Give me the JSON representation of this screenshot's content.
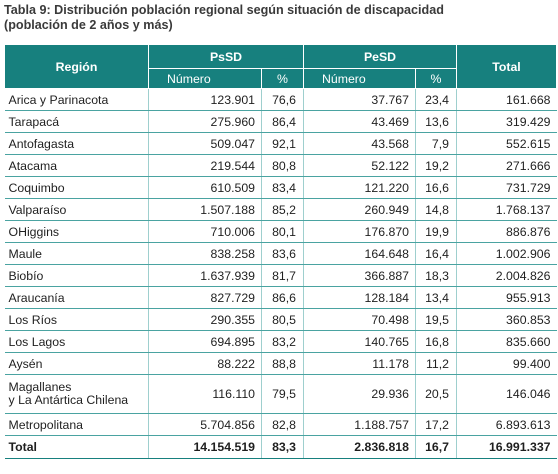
{
  "title_line1": "Tabla 9: Distribución población regional según situación de discapacidad",
  "title_line2": "(población de 2 años y más)",
  "headers": {
    "region": "Región",
    "psd": "PsSD",
    "pesd": "PeSD",
    "total": "Total",
    "numero": "Número",
    "pct": "%"
  },
  "rows": [
    {
      "region": "Arica y Parinacota",
      "psd_n": "123.901",
      "psd_p": "76,6",
      "pesd_n": "37.767",
      "pesd_p": "23,4",
      "total": "161.668"
    },
    {
      "region": "Tarapacá",
      "psd_n": "275.960",
      "psd_p": "86,4",
      "pesd_n": "43.469",
      "pesd_p": "13,6",
      "total": "319.429"
    },
    {
      "region": "Antofagasta",
      "psd_n": "509.047",
      "psd_p": "92,1",
      "pesd_n": "43.568",
      "pesd_p": "7,9",
      "total": "552.615"
    },
    {
      "region": "Atacama",
      "psd_n": "219.544",
      "psd_p": "80,8",
      "pesd_n": "52.122",
      "pesd_p": "19,2",
      "total": "271.666"
    },
    {
      "region": "Coquimbo",
      "psd_n": "610.509",
      "psd_p": "83,4",
      "pesd_n": "121.220",
      "pesd_p": "16,6",
      "total": "731.729"
    },
    {
      "region": "Valparaíso",
      "psd_n": "1.507.188",
      "psd_p": "85,2",
      "pesd_n": "260.949",
      "pesd_p": "14,8",
      "total": "1.768.137"
    },
    {
      "region": "OHiggins",
      "psd_n": "710.006",
      "psd_p": "80,1",
      "pesd_n": "176.870",
      "pesd_p": "19,9",
      "total": "886.876"
    },
    {
      "region": "Maule",
      "psd_n": "838.258",
      "psd_p": "83,6",
      "pesd_n": "164.648",
      "pesd_p": "16,4",
      "total": "1.002.906"
    },
    {
      "region": "Biobío",
      "psd_n": "1.637.939",
      "psd_p": "81,7",
      "pesd_n": "366.887",
      "pesd_p": "18,3",
      "total": "2.004.826"
    },
    {
      "region": "Araucanía",
      "psd_n": "827.729",
      "psd_p": "86,6",
      "pesd_n": "128.184",
      "pesd_p": "13,4",
      "total": "955.913"
    },
    {
      "region": "Los Ríos",
      "psd_n": "290.355",
      "psd_p": "80,5",
      "pesd_n": "70.498",
      "pesd_p": "19,5",
      "total": "360.853"
    },
    {
      "region": "Los Lagos",
      "psd_n": "694.895",
      "psd_p": "83,2",
      "pesd_n": "140.765",
      "pesd_p": "16,8",
      "total": "835.660"
    },
    {
      "region": "Aysén",
      "psd_n": "88.222",
      "psd_p": "88,8",
      "pesd_n": "11.178",
      "pesd_p": "11,2",
      "total": "99.400"
    },
    {
      "region": "Magallanes\ny La Antártica Chilena",
      "psd_n": "116.110",
      "psd_p": "79,5",
      "pesd_n": "29.936",
      "pesd_p": "20,5",
      "total": "146.046"
    },
    {
      "region": "Metropolitana",
      "psd_n": "5.704.856",
      "psd_p": "82,8",
      "pesd_n": "1.188.757",
      "pesd_p": "17,2",
      "total": "6.893.613"
    }
  ],
  "total_row": {
    "region": "Total",
    "psd_n": "14.154.519",
    "psd_p": "83,3",
    "pesd_n": "2.836.818",
    "pesd_p": "16,7",
    "total": "16.991.337"
  }
}
